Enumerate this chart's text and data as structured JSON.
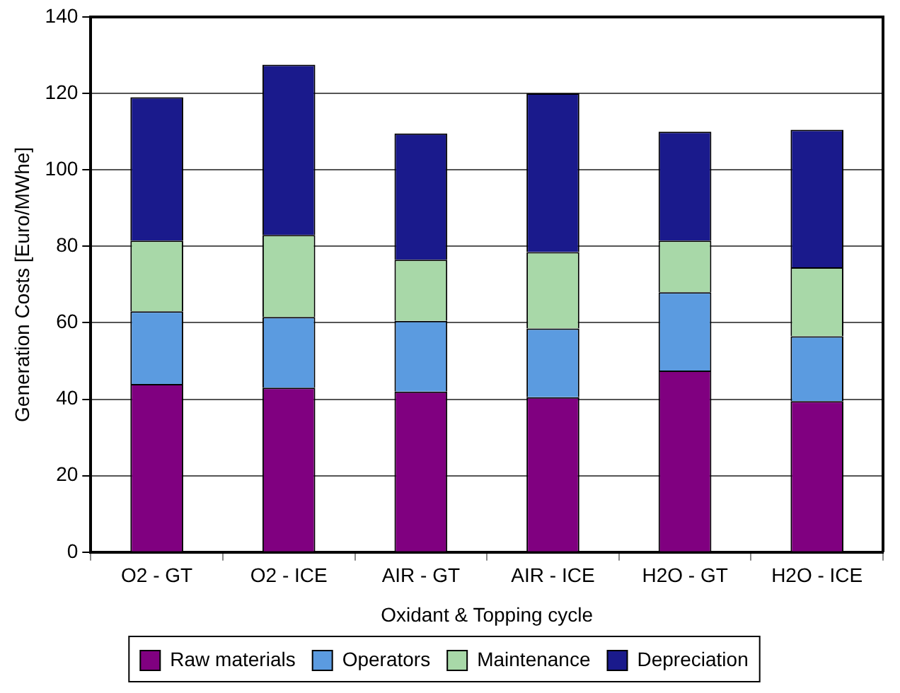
{
  "chart_data": {
    "type": "bar",
    "stacked": true,
    "xlabel": "Oxidant & Topping cycle",
    "ylabel": "Generation Costs [Euro/MWhe]",
    "categories": [
      "O2 - GT",
      "O2 - ICE",
      "AIR - GT",
      "AIR - ICE",
      "H2O - GT",
      "H2O - ICE"
    ],
    "series": [
      {
        "name": "Raw materials",
        "color": "#800080",
        "values": [
          44,
          43,
          42,
          40.5,
          47.5,
          39.5
        ]
      },
      {
        "name": "Operators",
        "color": "#5b9be0",
        "values": [
          19,
          18.5,
          18.5,
          18,
          20.5,
          17
        ]
      },
      {
        "name": "Maintenance",
        "color": "#a8d8a8",
        "values": [
          18.5,
          21.5,
          16,
          20,
          13.5,
          18
        ]
      },
      {
        "name": "Depreciation",
        "color": "#1a1a8c",
        "values": [
          37.5,
          44.5,
          33,
          41.5,
          28.5,
          36
        ]
      }
    ],
    "ylim": [
      0,
      140
    ],
    "yticks": [
      0,
      20,
      40,
      60,
      80,
      100,
      120,
      140
    ],
    "grid": "y",
    "legend": "bottom"
  }
}
